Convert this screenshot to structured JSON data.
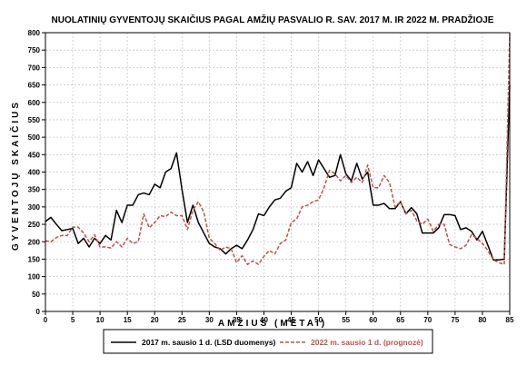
{
  "chart_data": {
    "type": "line",
    "title": "NUOLATINIŲ GYVENTOJŲ SKAIČIUS PAGAL AMŽIŲ PASVALIO R. SAV. 2017 M. IR 2022 M. PRADŽIOJE",
    "xlabel": "AMŽIUS (METAI)",
    "ylabel": "GYVENTOJŲ SKAIČIUS",
    "xlim": [
      0,
      85
    ],
    "ylim": [
      0,
      800
    ],
    "xticks": [
      0,
      5,
      10,
      15,
      20,
      25,
      30,
      35,
      40,
      45,
      50,
      55,
      60,
      65,
      70,
      75,
      80,
      85
    ],
    "yticks": [
      0,
      50,
      100,
      150,
      200,
      250,
      300,
      350,
      400,
      450,
      500,
      550,
      600,
      650,
      700,
      750,
      800
    ],
    "grid": true,
    "legend_position": "bottom",
    "x": [
      0,
      1,
      2,
      3,
      4,
      5,
      6,
      7,
      8,
      9,
      10,
      11,
      12,
      13,
      14,
      15,
      16,
      17,
      18,
      19,
      20,
      21,
      22,
      23,
      24,
      25,
      26,
      27,
      28,
      29,
      30,
      31,
      32,
      33,
      34,
      35,
      36,
      37,
      38,
      39,
      40,
      41,
      42,
      43,
      44,
      45,
      46,
      47,
      48,
      49,
      50,
      51,
      52,
      53,
      54,
      55,
      56,
      57,
      58,
      59,
      60,
      61,
      62,
      63,
      64,
      65,
      66,
      67,
      68,
      69,
      70,
      71,
      72,
      73,
      74,
      75,
      76,
      77,
      78,
      79,
      80,
      81,
      82,
      83,
      84,
      85
    ],
    "series": [
      {
        "name": "2017 m. sausio 1 d. (LSD duomenys)",
        "color": "#000000",
        "style": "solid",
        "values": [
          258,
          270,
          250,
          232,
          235,
          238,
          195,
          210,
          185,
          210,
          195,
          218,
          205,
          290,
          255,
          305,
          305,
          335,
          340,
          335,
          365,
          355,
          400,
          410,
          455,
          350,
          255,
          305,
          255,
          225,
          195,
          185,
          180,
          165,
          180,
          190,
          180,
          205,
          235,
          280,
          275,
          300,
          320,
          325,
          345,
          355,
          425,
          400,
          430,
          390,
          435,
          410,
          385,
          390,
          450,
          395,
          375,
          425,
          380,
          400,
          305,
          305,
          310,
          295,
          295,
          315,
          280,
          298,
          280,
          225,
          225,
          225,
          240,
          278,
          278,
          275,
          235,
          240,
          230,
          205,
          230,
          190,
          148,
          148,
          150,
          650
        ]
      },
      {
        "name": "2022 m. sausio 1 d. (prognozė)",
        "color": "#c0504d",
        "style": "dashed",
        "values": [
          203,
          200,
          212,
          218,
          218,
          242,
          242,
          225,
          200,
          220,
          185,
          185,
          182,
          200,
          185,
          210,
          195,
          200,
          280,
          240,
          255,
          275,
          272,
          285,
          275,
          275,
          235,
          290,
          315,
          285,
          210,
          195,
          175,
          185,
          180,
          140,
          160,
          135,
          145,
          135,
          158,
          175,
          165,
          195,
          205,
          255,
          265,
          300,
          305,
          315,
          320,
          355,
          405,
          395,
          375,
          390,
          370,
          385,
          370,
          420,
          355,
          355,
          390,
          370,
          300,
          315,
          280,
          290,
          260,
          250,
          265,
          230,
          250,
          250,
          192,
          185,
          180,
          190,
          220,
          210,
          195,
          175,
          148,
          140,
          135,
          795
        ]
      }
    ]
  }
}
